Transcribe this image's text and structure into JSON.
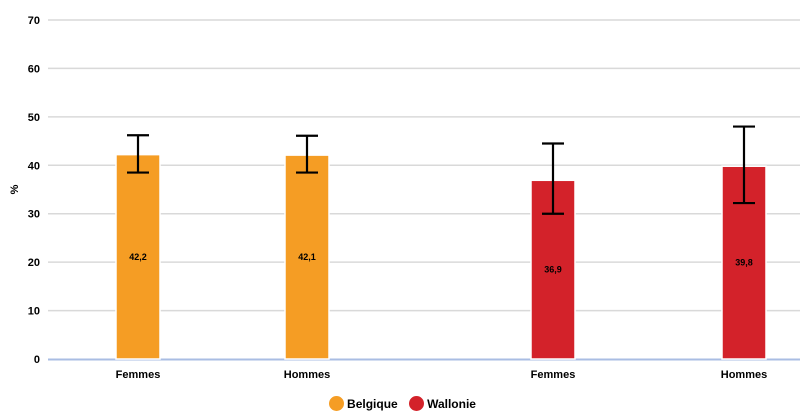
{
  "chart_data": {
    "type": "bar",
    "title": "",
    "xlabel": "",
    "ylabel": "%",
    "ylim": [
      0,
      70
    ],
    "yticks": [
      0,
      10,
      20,
      30,
      40,
      50,
      60,
      70
    ],
    "grid": true,
    "legend_position": "bottom-center",
    "categories": [
      "Femmes",
      "Hommes",
      "Femmes",
      "Hommes"
    ],
    "bars": [
      {
        "category": "Femmes",
        "series": "Belgique",
        "value": 42.2,
        "label": "42,2",
        "ci": [
          38.5,
          46.2
        ]
      },
      {
        "category": "Hommes",
        "series": "Belgique",
        "value": 42.1,
        "label": "42,1",
        "ci": [
          38.5,
          46.1
        ]
      },
      {
        "category": "Femmes",
        "series": "Wallonie",
        "value": 36.9,
        "label": "36,9",
        "ci": [
          30.0,
          44.5
        ]
      },
      {
        "category": "Hommes",
        "series": "Wallonie",
        "value": 39.8,
        "label": "39,8",
        "ci": [
          32.2,
          48.0
        ]
      }
    ],
    "series": [
      {
        "name": "Belgique",
        "color": "#f59d24"
      },
      {
        "name": "Wallonie",
        "color": "#d3222a"
      }
    ]
  }
}
